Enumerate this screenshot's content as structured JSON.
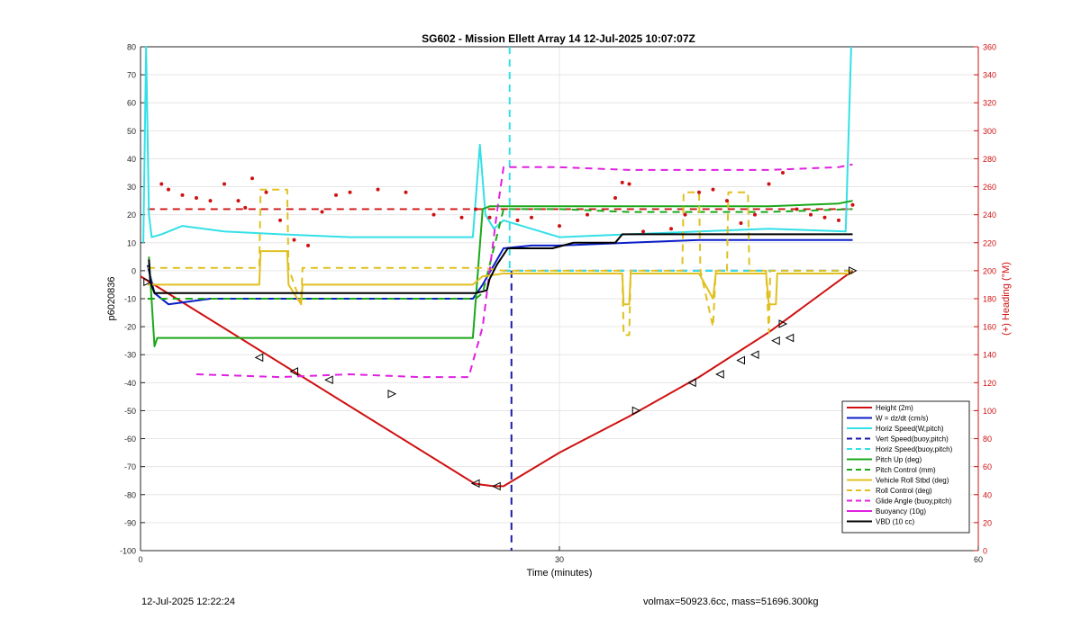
{
  "chart_data": {
    "type": "line",
    "title": "SG602 - Mission Ellett Array 14 12-Jul-2025 10:07:07Z",
    "xlabel": "Time (minutes)",
    "ylabel_left": "p6020836",
    "ylabel_right": "(+) Heading (°M)",
    "xlim": [
      0,
      60
    ],
    "ylim_left": [
      -100,
      80
    ],
    "ylim_right": [
      0,
      360
    ],
    "x_ticks": [
      0,
      30,
      60
    ],
    "y_ticks_left": [
      -100,
      -90,
      -80,
      -70,
      -60,
      -50,
      -40,
      -30,
      -20,
      -10,
      0,
      10,
      20,
      30,
      40,
      50,
      60,
      70,
      80
    ],
    "y_ticks_right": [
      0,
      20,
      40,
      60,
      80,
      100,
      120,
      140,
      160,
      180,
      200,
      220,
      240,
      260,
      280,
      300,
      320,
      340,
      360
    ],
    "grid": true,
    "legend_location": "lower-right",
    "colors": {
      "height": "#d01010",
      "w": "#0a1ec8",
      "horiz_speed": "#33e0e8",
      "vert_speed_ref": "#1a1aa8",
      "pitch": "#1aa81a",
      "roll": "#e0c020",
      "glide": "#e020e0",
      "vbd": "#000000",
      "heading_axis": "#d01010"
    },
    "series": [
      {
        "name": "Height (2m)",
        "style": "solid",
        "color": "#d01010",
        "x": [
          0,
          23.9,
          24.5,
          25.3,
          26,
          30,
          35,
          40,
          45,
          51
        ],
        "y": [
          -2,
          -76,
          -76.5,
          -77,
          -77,
          -65,
          -52,
          -38,
          -22,
          0
        ]
      },
      {
        "name": "W = dz/dt (cm/s)",
        "style": "solid",
        "color": "#0a1ec8",
        "x": [
          0.5,
          1,
          2,
          5,
          10,
          15,
          20,
          23.8,
          24.5,
          25.3,
          26,
          28,
          30,
          35,
          40,
          45,
          51
        ],
        "y": [
          2,
          -8,
          -12,
          -10,
          -10,
          -10,
          -10,
          -10,
          -5,
          2,
          8,
          9,
          9,
          10,
          11,
          11,
          11
        ]
      },
      {
        "name": "Horiz Speed(W,pitch)",
        "style": "solid",
        "color": "#33e0e8",
        "x": [
          0.2,
          0.4,
          0.6,
          0.8,
          1.5,
          3,
          6,
          10,
          15,
          20,
          23.8,
          24.3,
          24.7,
          25.3,
          26,
          30,
          35,
          40,
          45,
          50.5,
          50.9
        ],
        "y": [
          10,
          80,
          20,
          12,
          13,
          16,
          14,
          13,
          12,
          12,
          12,
          45,
          20,
          15,
          18,
          12,
          13,
          14,
          15,
          14,
          80
        ]
      },
      {
        "name": "Vert Speed(buoy,pitch)",
        "style": "dash",
        "color": "#1a1aa8",
        "x": [
          26,
          30,
          35,
          40,
          45,
          51
        ],
        "y": [
          0,
          0,
          0,
          0,
          0,
          0
        ]
      },
      {
        "name": "Horiz Speed(buoy,pitch)",
        "style": "dash",
        "color": "#33e0e8",
        "x": [
          26,
          30,
          35,
          40,
          45,
          51
        ],
        "y": [
          0,
          0,
          0,
          0,
          0,
          0
        ]
      },
      {
        "name": "Pitch Up (deg)",
        "style": "solid",
        "color": "#1aa81a",
        "x": [
          0.6,
          1,
          1.2,
          5,
          10,
          15,
          20,
          23.8,
          24.5,
          25,
          26,
          30,
          35,
          40,
          45,
          50,
          51
        ],
        "y": [
          5,
          -27,
          -24,
          -24,
          -24,
          -24,
          -24,
          -24,
          22,
          23,
          23,
          23,
          23,
          23,
          23,
          24,
          25
        ]
      },
      {
        "name": "Pitch Control (mm)",
        "style": "dash",
        "color": "#1aa81a",
        "x": [
          0.5,
          24,
          24.5,
          26,
          30,
          35,
          40,
          45,
          51
        ],
        "y": [
          -10,
          -10,
          -8,
          22,
          22,
          21,
          21,
          21,
          22
        ]
      },
      {
        "name": "Vehicle Roll Stbd (deg)",
        "style": "solid",
        "color": "#e0c020",
        "x": [
          0.5,
          5,
          8.5,
          8.6,
          10.5,
          10.6,
          11.5,
          11.6,
          20,
          23.8,
          24.5,
          26,
          30,
          34.5,
          34.6,
          35,
          35.1,
          40,
          41,
          41.2,
          41.8,
          42,
          44.8,
          45,
          45.5,
          45.6,
          51
        ],
        "y": [
          -5,
          -5,
          -5,
          7,
          7,
          -5,
          -12,
          -5,
          -5,
          -5,
          -2,
          -1,
          -1,
          -1,
          -12,
          -12,
          -1,
          -1,
          -10,
          -1,
          -1,
          -1,
          -1,
          -12,
          -12,
          -1,
          -1
        ]
      },
      {
        "name": "Roll Control (deg)",
        "style": "dash",
        "color": "#e0c020",
        "x": [
          0.5,
          5,
          8.5,
          8.6,
          10.5,
          10.6,
          11.5,
          11.6,
          20,
          24,
          24.5,
          26,
          30,
          34.5,
          34.6,
          35,
          35.1,
          38.8,
          38.9,
          40,
          40.1,
          41,
          41.2,
          42,
          42.1,
          43.5,
          43.6,
          44.8,
          45,
          45.1,
          51
        ],
        "y": [
          1,
          1,
          1,
          29,
          29,
          1,
          -12,
          1,
          1,
          1,
          1,
          0,
          0,
          0,
          -23,
          -23,
          0,
          0,
          28,
          28,
          0,
          -20,
          0,
          0,
          28,
          28,
          0,
          0,
          -22,
          0,
          0
        ]
      },
      {
        "name": "Glide Angle (buoy,pitch)",
        "style": "dash",
        "color": "#e020e0",
        "x": [
          4,
          10,
          15,
          20,
          23.5,
          24.5,
          25.5,
          26,
          30,
          35,
          40,
          45,
          50,
          51
        ],
        "y": [
          -37,
          -38,
          -37,
          -38,
          -38,
          -20,
          20,
          37,
          37,
          36,
          36,
          36,
          37,
          38
        ]
      },
      {
        "name": "Buoyancy (10g)",
        "style": "solid",
        "color": "#e020e0",
        "x": [],
        "y": []
      },
      {
        "name": "VBD (10 cc)",
        "style": "solid",
        "color": "#000000",
        "x": [
          0.6,
          0.7,
          1,
          24,
          24.8,
          25,
          25.5,
          26.3,
          27,
          28,
          29.5,
          31,
          34,
          34.5,
          36,
          45,
          51
        ],
        "y": [
          4,
          -4,
          -8,
          -8,
          -7,
          -3,
          2,
          8,
          8,
          8,
          8,
          10,
          10,
          13,
          13,
          13,
          13
        ]
      }
    ],
    "heading_series": {
      "name": "Heading (°M)",
      "style": "dotted",
      "color": "#d01010",
      "x": [
        1.5,
        2,
        3,
        4,
        5,
        6,
        7,
        7.5,
        8,
        9,
        10,
        11,
        12,
        13,
        14,
        15,
        17,
        19,
        21,
        23,
        24,
        25,
        27,
        28,
        30,
        32,
        34,
        34.5,
        35,
        36,
        38,
        39,
        40,
        41,
        42,
        43,
        44,
        45,
        46,
        47,
        48,
        49,
        50,
        51
      ],
      "y": [
        262,
        258,
        254,
        252,
        250,
        262,
        250,
        245,
        266,
        256,
        236,
        222,
        218,
        242,
        254,
        256,
        258,
        256,
        240,
        238,
        244,
        238,
        236,
        238,
        232,
        240,
        252,
        263,
        262,
        228,
        230,
        240,
        256,
        258,
        250,
        234,
        240,
        262,
        270,
        244,
        240,
        238,
        236,
        247
      ]
    },
    "heading_reference": {
      "style": "dash",
      "color": "#d01010",
      "y": 244
    },
    "vertical_marker": {
      "x": 26.5,
      "colors": [
        "#1a1aa8",
        "#33e0e8"
      ]
    },
    "direction_markers": {
      "right_pointing": [
        [
          0.5,
          -4
        ],
        [
          18,
          -44
        ],
        [
          35.5,
          -50
        ],
        [
          46,
          -19
        ]
      ],
      "left_pointing": [
        [
          8.5,
          -31
        ],
        [
          11,
          -36
        ],
        [
          13.5,
          -39
        ],
        [
          24,
          -76
        ],
        [
          25.5,
          -77
        ],
        [
          39.5,
          -40
        ],
        [
          41.5,
          -37
        ],
        [
          43,
          -32
        ],
        [
          44,
          -30
        ],
        [
          45.5,
          -25
        ],
        [
          46.5,
          -24
        ]
      ],
      "end_marker": [
        51,
        0
      ]
    },
    "footer_left": "12-Jul-2025 12:22:24",
    "footer_right": "volmax=50923.6cc, mass=51696.300kg"
  }
}
